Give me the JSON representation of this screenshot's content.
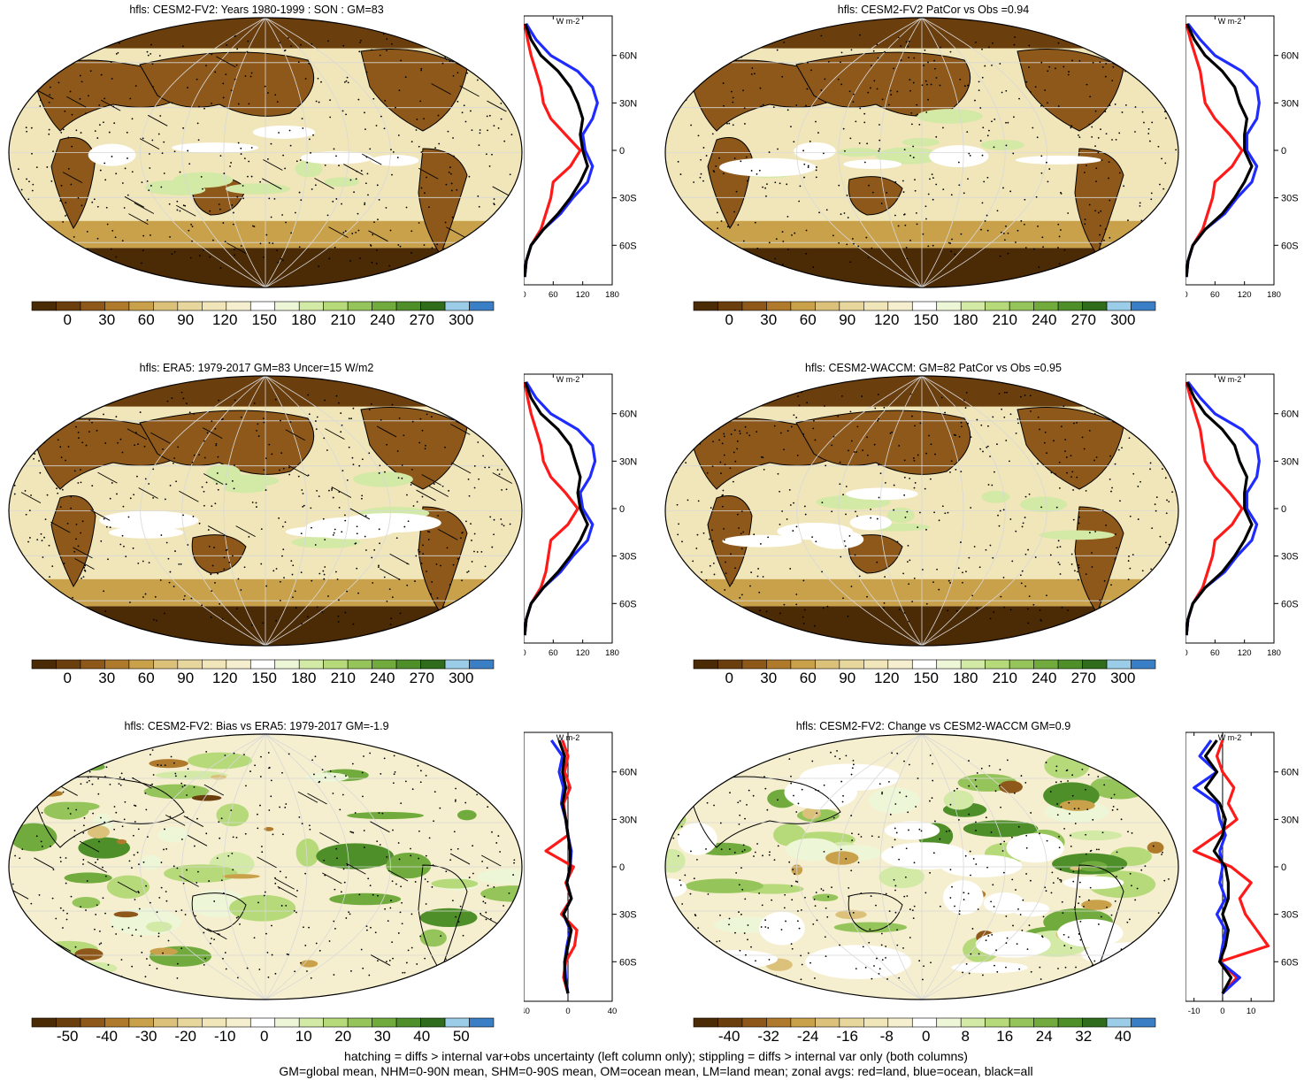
{
  "colors": {
    "mean": [
      "#4b2a06",
      "#6b3e0e",
      "#8d5819",
      "#b07a2c",
      "#c9a14a",
      "#dcc17a",
      "#e8d79d",
      "#f1e6b9",
      "#f6efcf",
      "#ffffff",
      "#eef6d8",
      "#d3e9a6",
      "#b6d97a",
      "#95c45a",
      "#71ab3e",
      "#4f8f2a",
      "#2f6d1c",
      "#9bcde8",
      "#3a7fc6"
    ],
    "anom": [
      "#4b2a06",
      "#6b3e0e",
      "#8d5819",
      "#b07a2c",
      "#c9a14a",
      "#dcc17a",
      "#e8d79d",
      "#f1e6b9",
      "#f6efcf",
      "#ffffff",
      "#eef6d8",
      "#d3e9a6",
      "#b6d97a",
      "#95c45a",
      "#71ab3e",
      "#4f8f2a",
      "#2f6d1c",
      "#9bcde8",
      "#3a7fc6"
    ],
    "land": "#ff1a1a",
    "ocean": "#1f2bff",
    "all": "#000000"
  },
  "panels": [
    {
      "title": "hfls: CESM2-FV2: Years 1980-1999 : SON : GM=83",
      "cbar_labels": [
        "0",
        "30",
        "60",
        "90",
        "120",
        "150",
        "180",
        "210",
        "240",
        "270",
        "300"
      ],
      "scheme": "mean",
      "hatched": true,
      "stippled": true
    },
    {
      "title": "hfls: CESM2-FV2 PatCor vs Obs =0.94",
      "cbar_labels": [
        "0",
        "30",
        "60",
        "90",
        "120",
        "150",
        "180",
        "210",
        "240",
        "270",
        "300"
      ],
      "scheme": "mean",
      "hatched": false,
      "stippled": true
    },
    {
      "title": "hfls: ERA5: 1979-2017 GM=83 Uncer=15 W/m2",
      "cbar_labels": [
        "0",
        "30",
        "60",
        "90",
        "120",
        "150",
        "180",
        "210",
        "240",
        "270",
        "300"
      ],
      "scheme": "mean",
      "hatched": true,
      "stippled": true
    },
    {
      "title": "hfls: CESM2-WACCM: GM=82 PatCor vs Obs =0.95",
      "cbar_labels": [
        "0",
        "30",
        "60",
        "90",
        "120",
        "150",
        "180",
        "210",
        "240",
        "270",
        "300"
      ],
      "scheme": "mean",
      "hatched": false,
      "stippled": true
    },
    {
      "title": "hfls: CESM2-FV2: Bias vs ERA5: 1979-2017  GM=-1.9",
      "cbar_labels": [
        "-50",
        "-40",
        "-30",
        "-20",
        "-10",
        "0",
        "10",
        "20",
        "30",
        "40",
        "50"
      ],
      "scheme": "anom",
      "hatched": true,
      "stippled": true
    },
    {
      "title": "hfls: CESM2-FV2: Change vs CESM2-WACCM GM=0.9",
      "cbar_labels": [
        "-40",
        "-32",
        "-24",
        "-16",
        "-8",
        "0",
        "8",
        "16",
        "24",
        "32",
        "40"
      ],
      "scheme": "anom",
      "hatched": false,
      "stippled": true
    }
  ],
  "chart_data": [
    {
      "type": "line",
      "panel": 0,
      "unit_label": "W m-2",
      "xticks": [
        "0",
        "60",
        "120",
        "180"
      ],
      "xlim": [
        0,
        180
      ],
      "yticks": [
        "60N",
        "30N",
        "0",
        "30S",
        "60S"
      ],
      "ylim": [
        -85,
        85
      ],
      "lat": [
        80,
        70,
        60,
        50,
        40,
        30,
        20,
        10,
        0,
        -10,
        -20,
        -30,
        -40,
        -50,
        -60,
        -70,
        -80
      ],
      "series": [
        {
          "color": "land",
          "values": [
            2,
            8,
            15,
            25,
            35,
            40,
            55,
            85,
            115,
            95,
            60,
            55,
            45,
            35,
            15,
            5,
            2
          ]
        },
        {
          "color": "ocean",
          "values": [
            5,
            25,
            55,
            110,
            140,
            150,
            140,
            120,
            125,
            140,
            130,
            100,
            75,
            40,
            15,
            5,
            2
          ]
        },
        {
          "color": "all",
          "values": [
            3,
            15,
            35,
            70,
            95,
            110,
            120,
            115,
            120,
            130,
            115,
            95,
            70,
            40,
            15,
            5,
            2
          ]
        }
      ]
    },
    {
      "type": "line",
      "panel": 1,
      "unit_label": "W m-2",
      "xticks": [
        "0",
        "60",
        "120",
        "180"
      ],
      "xlim": [
        0,
        180
      ],
      "yticks": [
        "60N",
        "30N",
        "0",
        "30S",
        "60S"
      ],
      "ylim": [
        -85,
        85
      ],
      "lat": [
        80,
        70,
        60,
        50,
        40,
        30,
        20,
        10,
        0,
        -10,
        -20,
        -30,
        -40,
        -50,
        -60,
        -70,
        -80
      ],
      "series": [
        {
          "color": "land",
          "values": [
            2,
            10,
            20,
            30,
            35,
            40,
            60,
            90,
            115,
            95,
            60,
            55,
            45,
            35,
            15,
            5,
            2
          ]
        },
        {
          "color": "ocean",
          "values": [
            5,
            30,
            60,
            115,
            145,
            150,
            145,
            125,
            125,
            145,
            135,
            105,
            80,
            40,
            15,
            5,
            2
          ]
        },
        {
          "color": "all",
          "values": [
            3,
            18,
            40,
            75,
            100,
            110,
            125,
            120,
            120,
            135,
            120,
            100,
            75,
            40,
            15,
            5,
            2
          ]
        }
      ]
    },
    {
      "type": "line",
      "panel": 2,
      "unit_label": "W m-2",
      "xticks": [
        "0",
        "60",
        "120",
        "180"
      ],
      "xlim": [
        0,
        180
      ],
      "yticks": [
        "60N",
        "30N",
        "0",
        "30S",
        "60S"
      ],
      "ylim": [
        -85,
        85
      ],
      "lat": [
        80,
        70,
        60,
        50,
        40,
        30,
        20,
        10,
        0,
        -10,
        -20,
        -30,
        -40,
        -50,
        -60,
        -70,
        -80
      ],
      "series": [
        {
          "color": "land",
          "values": [
            2,
            8,
            15,
            25,
            35,
            40,
            55,
            85,
            110,
            90,
            55,
            50,
            45,
            35,
            15,
            5,
            2
          ]
        },
        {
          "color": "ocean",
          "values": [
            5,
            25,
            55,
            110,
            140,
            145,
            135,
            115,
            120,
            140,
            130,
            100,
            75,
            40,
            15,
            5,
            2
          ]
        },
        {
          "color": "all",
          "values": [
            3,
            15,
            35,
            70,
            95,
            105,
            115,
            110,
            115,
            130,
            115,
            95,
            70,
            40,
            15,
            5,
            2
          ]
        }
      ]
    },
    {
      "type": "line",
      "panel": 3,
      "unit_label": "W m-2",
      "xticks": [
        "0",
        "60",
        "120",
        "180"
      ],
      "xlim": [
        0,
        180
      ],
      "yticks": [
        "60N",
        "30N",
        "0",
        "30S",
        "60S"
      ],
      "ylim": [
        -85,
        85
      ],
      "lat": [
        80,
        70,
        60,
        50,
        40,
        30,
        20,
        10,
        0,
        -10,
        -20,
        -30,
        -40,
        -50,
        -60,
        -70,
        -80
      ],
      "series": [
        {
          "color": "land",
          "values": [
            2,
            10,
            20,
            30,
            35,
            40,
            60,
            90,
            115,
            95,
            60,
            55,
            45,
            35,
            15,
            5,
            2
          ]
        },
        {
          "color": "ocean",
          "values": [
            5,
            30,
            60,
            115,
            145,
            150,
            145,
            125,
            125,
            145,
            135,
            105,
            80,
            40,
            15,
            5,
            2
          ]
        },
        {
          "color": "all",
          "values": [
            3,
            18,
            40,
            75,
            100,
            110,
            125,
            120,
            120,
            135,
            120,
            100,
            75,
            40,
            15,
            5,
            2
          ]
        }
      ]
    },
    {
      "type": "line",
      "panel": 4,
      "unit_label": "W m-2",
      "xticks": [
        "-40",
        "0",
        "40"
      ],
      "xlim": [
        -40,
        40
      ],
      "yticks": [
        "60N",
        "30N",
        "0",
        "30S",
        "60S"
      ],
      "ylim": [
        -85,
        85
      ],
      "lat": [
        80,
        70,
        60,
        50,
        40,
        30,
        20,
        10,
        0,
        -10,
        -20,
        -30,
        -40,
        -50,
        -60,
        -70,
        -80
      ],
      "series": [
        {
          "color": "land",
          "values": [
            -5,
            0,
            -3,
            2,
            -4,
            -2,
            0,
            -20,
            5,
            -2,
            3,
            -6,
            8,
            6,
            -2,
            -4,
            0
          ]
        },
        {
          "color": "ocean",
          "values": [
            -15,
            -5,
            -8,
            -4,
            -6,
            -2,
            0,
            3,
            2,
            -1,
            3,
            -4,
            2,
            -1,
            -3,
            -2,
            0
          ]
        },
        {
          "color": "all",
          "values": [
            -8,
            -3,
            -5,
            -2,
            -5,
            -2,
            0,
            2,
            2,
            -1,
            3,
            -4,
            3,
            0,
            -3,
            -3,
            0
          ]
        }
      ]
    },
    {
      "type": "line",
      "panel": 5,
      "unit_label": "W m-2",
      "xticks": [
        "-10",
        "0",
        "10"
      ],
      "xlim": [
        -13,
        18
      ],
      "yticks": [
        "60N",
        "30N",
        "0",
        "30S",
        "60S"
      ],
      "ylim": [
        -85,
        85
      ],
      "lat": [
        80,
        70,
        60,
        50,
        40,
        30,
        20,
        10,
        0,
        -10,
        -20,
        -30,
        -40,
        -50,
        -60,
        -70,
        -80
      ],
      "series": [
        {
          "color": "land",
          "values": [
            0,
            -2,
            0,
            4,
            2,
            5,
            -2,
            -10,
            3,
            10,
            6,
            8,
            12,
            16,
            -1,
            5,
            0
          ]
        },
        {
          "color": "ocean",
          "values": [
            -4,
            -8,
            -2,
            -10,
            -2,
            -1,
            1,
            -1,
            0,
            -1,
            1,
            -2,
            1,
            0,
            -1,
            6,
            0
          ]
        },
        {
          "color": "all",
          "values": [
            -2,
            -6,
            -2,
            -6,
            -1,
            1,
            0,
            -3,
            1,
            2,
            2,
            0,
            2,
            1,
            -1,
            3,
            0
          ]
        }
      ]
    }
  ],
  "footer": {
    "line1": "hatching = diffs > internal var+obs uncertainty (left column only); stippling = diffs > internal var only (both columns)",
    "line2": "GM=global mean, NHM=0-90N mean, SHM=0-90S mean, OM=ocean mean, LM=land mean; zonal avgs: red=land, blue=ocean, black=all"
  }
}
